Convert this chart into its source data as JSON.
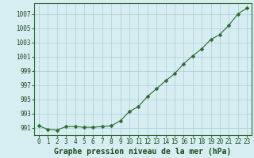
{
  "x": [
    0,
    1,
    2,
    3,
    4,
    5,
    6,
    7,
    8,
    9,
    10,
    11,
    12,
    13,
    14,
    15,
    16,
    17,
    18,
    19,
    20,
    21,
    22,
    23
  ],
  "y": [
    991.3,
    990.8,
    990.7,
    991.2,
    991.2,
    991.1,
    991.1,
    991.2,
    991.3,
    992.0,
    993.3,
    994.0,
    995.4,
    996.5,
    997.6,
    998.6,
    1000.0,
    1001.1,
    1002.1,
    1003.4,
    1004.1,
    1005.4,
    1007.0,
    1007.8
  ],
  "line_color": "#2d6a2d",
  "marker": "D",
  "marker_size": 2.5,
  "bg_color": "#d6eef2",
  "grid_color": "#aaccd4",
  "xlabel": "Graphe pression niveau de la mer (hPa)",
  "xlabel_fontsize": 7,
  "xlabel_color": "#1a4a1a",
  "yticks": [
    991,
    993,
    995,
    997,
    999,
    1001,
    1003,
    1005,
    1007
  ],
  "ylim": [
    990.0,
    1008.5
  ],
  "xlim": [
    -0.5,
    23.5
  ],
  "tick_fontsize": 5.5,
  "tick_color": "#1a4a1a",
  "axis_color": "#2d6a2d",
  "xtick_labels": [
    "0",
    "1",
    "2",
    "3",
    "4",
    "5",
    "6",
    "7",
    "8",
    "9",
    "1011",
    "1213",
    "1415",
    "1617",
    "1819",
    "2021",
    "2223"
  ]
}
